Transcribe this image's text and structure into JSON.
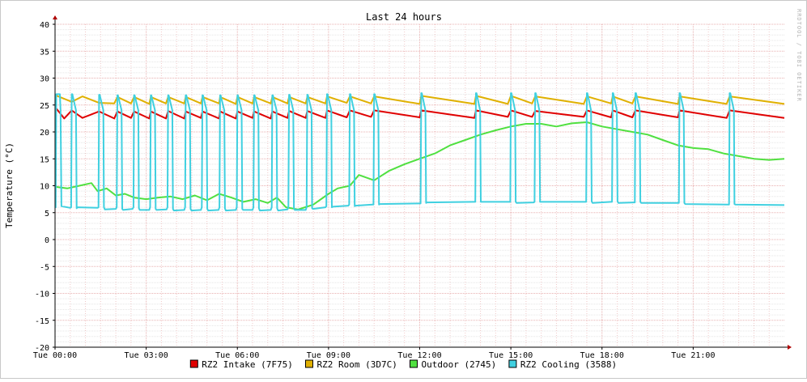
{
  "chart_data": {
    "type": "line",
    "title": "Last 24 hours",
    "ylabel": "Temperature (°C)",
    "watermark": "RRDTOOL / TOBI OETIKER",
    "ylim": [
      -20,
      40
    ],
    "y_ticks": [
      40,
      35,
      30,
      25,
      20,
      15,
      10,
      5,
      0,
      -5,
      -10,
      -15,
      -20
    ],
    "xlim_hours": [
      0,
      24
    ],
    "x_ticks": [
      {
        "h": 0,
        "label": "Tue 00:00"
      },
      {
        "h": 3,
        "label": "Tue 03:00"
      },
      {
        "h": 6,
        "label": "Tue 06:00"
      },
      {
        "h": 9,
        "label": "Tue 09:00"
      },
      {
        "h": 12,
        "label": "Tue 12:00"
      },
      {
        "h": 15,
        "label": "Tue 15:00"
      },
      {
        "h": 18,
        "label": "Tue 18:00"
      },
      {
        "h": 21,
        "label": "Tue 21:00"
      }
    ],
    "grid": true,
    "legend_position": "bottom",
    "cooling_cycle_start_hours": [
      0.02,
      0.55,
      1.45,
      2.05,
      2.6,
      3.15,
      3.72,
      4.3,
      4.85,
      5.43,
      6.0,
      6.55,
      7.15,
      7.7,
      8.3,
      8.95,
      9.7,
      10.5,
      12.05,
      13.85,
      15.0,
      15.8,
      17.5,
      18.35,
      19.1,
      20.55,
      22.2
    ],
    "series": [
      {
        "name": "RZ2 Intake (7F75)",
        "color": "#e00000",
        "x": [
          0.02,
          0.3,
          0.55,
          0.9,
          1.45,
          1.95,
          2.05,
          2.5,
          2.6,
          3.1,
          3.15,
          3.65,
          3.72,
          4.25,
          4.3,
          4.8,
          4.85,
          5.4,
          5.43,
          5.95,
          6.0,
          6.5,
          6.55,
          7.1,
          7.15,
          7.65,
          7.7,
          8.25,
          8.3,
          8.9,
          8.95,
          9.6,
          9.7,
          10.4,
          10.5,
          12.0,
          12.05,
          13.8,
          13.85,
          14.9,
          15.0,
          15.7,
          15.8,
          17.4,
          17.5,
          18.3,
          18.35,
          19.0,
          19.1,
          20.5,
          20.55,
          22.1,
          22.2,
          24.0
        ],
        "y": [
          24.5,
          22.5,
          24.0,
          22.6,
          23.8,
          22.5,
          23.8,
          22.6,
          23.8,
          22.5,
          23.8,
          22.5,
          23.9,
          22.5,
          23.8,
          22.6,
          23.8,
          22.5,
          23.8,
          22.5,
          23.8,
          22.6,
          23.8,
          22.5,
          23.8,
          22.6,
          23.9,
          22.6,
          23.9,
          22.6,
          24.0,
          22.7,
          24.0,
          22.8,
          24.0,
          22.7,
          24.0,
          22.6,
          24.0,
          22.8,
          24.0,
          22.8,
          23.9,
          22.8,
          24.0,
          22.7,
          24.0,
          22.7,
          24.0,
          22.7,
          24.0,
          22.6,
          24.0,
          22.6
        ]
      },
      {
        "name": "RZ2 Room (3D7C)",
        "color": "#e0b000",
        "x": [
          0.02,
          0.55,
          0.9,
          1.45,
          1.95,
          2.05,
          2.5,
          2.6,
          3.1,
          3.15,
          3.65,
          3.72,
          4.25,
          4.3,
          4.8,
          4.85,
          5.4,
          5.43,
          5.95,
          6.0,
          6.5,
          6.55,
          7.1,
          7.15,
          7.65,
          7.7,
          8.25,
          8.3,
          8.9,
          8.95,
          9.6,
          9.7,
          10.4,
          10.5,
          12.0,
          12.05,
          13.8,
          13.85,
          14.9,
          15.0,
          15.7,
          15.8,
          17.4,
          17.5,
          18.3,
          18.35,
          19.0,
          19.1,
          20.5,
          20.55,
          22.1,
          22.2,
          24.0
        ],
        "y": [
          26.8,
          25.6,
          26.6,
          25.4,
          25.3,
          26.5,
          25.3,
          26.5,
          25.2,
          26.5,
          25.3,
          26.5,
          25.3,
          26.5,
          25.3,
          26.5,
          25.3,
          26.5,
          25.2,
          26.5,
          25.3,
          26.5,
          25.3,
          26.5,
          25.3,
          26.5,
          25.3,
          26.5,
          25.3,
          26.6,
          25.4,
          26.6,
          25.3,
          26.6,
          25.2,
          26.7,
          25.2,
          26.7,
          25.2,
          26.7,
          25.3,
          26.6,
          25.2,
          26.6,
          25.3,
          26.6,
          25.3,
          26.6,
          25.2,
          26.6,
          25.2,
          26.6,
          25.2
        ]
      },
      {
        "name": "Outdoor (2745)",
        "color": "#50e040",
        "x": [
          0.0,
          0.4,
          0.8,
          1.2,
          1.4,
          1.7,
          2.0,
          2.3,
          2.6,
          3.0,
          3.4,
          3.8,
          4.2,
          4.6,
          5.0,
          5.4,
          5.8,
          6.2,
          6.6,
          7.0,
          7.3,
          7.6,
          8.0,
          8.5,
          9.0,
          9.3,
          9.7,
          10.0,
          10.5,
          11.0,
          11.5,
          12.0,
          12.5,
          13.0,
          13.5,
          14.0,
          14.5,
          15.0,
          15.5,
          16.0,
          16.5,
          17.0,
          17.5,
          18.0,
          18.5,
          19.0,
          19.5,
          20.0,
          20.5,
          21.0,
          21.5,
          22.0,
          22.5,
          23.0,
          23.5,
          24.0
        ],
        "y": [
          9.8,
          9.5,
          10.0,
          10.5,
          9.0,
          9.5,
          8.2,
          8.5,
          7.8,
          7.5,
          7.8,
          8.0,
          7.5,
          8.2,
          7.3,
          8.5,
          7.8,
          7.0,
          7.5,
          6.8,
          7.8,
          6.0,
          5.6,
          6.5,
          8.5,
          9.5,
          10.0,
          12.0,
          11.0,
          12.8,
          14.0,
          15.0,
          16.0,
          17.5,
          18.5,
          19.5,
          20.3,
          21.0,
          21.5,
          21.5,
          21.0,
          21.6,
          21.8,
          21.0,
          20.5,
          20.0,
          19.5,
          18.5,
          17.5,
          17.0,
          16.8,
          16.0,
          15.5,
          15.0,
          14.8,
          15.0
        ]
      },
      {
        "name": "RZ2 Cooling (3588)",
        "color": "#40d0e0",
        "x": [
          0.0,
          0.02,
          0.04,
          0.16,
          0.18,
          0.21,
          0.5,
          0.53,
          0.55,
          0.57,
          0.69,
          0.71,
          0.74,
          1.4,
          1.43,
          1.45,
          1.47,
          1.59,
          1.61,
          1.64,
          2.0,
          2.03,
          2.05,
          2.07,
          2.19,
          2.21,
          2.24,
          2.55,
          2.58,
          2.6,
          2.62,
          2.74,
          2.76,
          2.79,
          3.1,
          3.13,
          3.15,
          3.17,
          3.29,
          3.31,
          3.34,
          3.67,
          3.7,
          3.72,
          3.74,
          3.86,
          3.88,
          3.91,
          4.25,
          4.28,
          4.3,
          4.32,
          4.44,
          4.46,
          4.49,
          4.8,
          4.83,
          4.85,
          4.87,
          4.99,
          5.01,
          5.04,
          5.38,
          5.41,
          5.43,
          5.45,
          5.57,
          5.59,
          5.62,
          5.95,
          5.98,
          6.0,
          6.02,
          6.14,
          6.16,
          6.19,
          6.5,
          6.53,
          6.55,
          6.57,
          6.69,
          6.71,
          6.74,
          7.1,
          7.13,
          7.15,
          7.17,
          7.29,
          7.31,
          7.34,
          7.65,
          7.68,
          7.7,
          7.72,
          7.84,
          7.86,
          7.89,
          8.25,
          8.28,
          8.3,
          8.32,
          8.44,
          8.46,
          8.49,
          8.9,
          8.93,
          8.95,
          8.97,
          9.09,
          9.11,
          9.14,
          9.65,
          9.68,
          9.7,
          9.72,
          9.84,
          9.86,
          9.89,
          10.45,
          10.48,
          10.5,
          10.52,
          10.64,
          10.66,
          10.69,
          12.0,
          12.03,
          12.05,
          12.07,
          12.19,
          12.21,
          12.24,
          13.8,
          13.83,
          13.85,
          13.87,
          13.99,
          14.01,
          14.04,
          14.95,
          14.98,
          15.0,
          15.02,
          15.14,
          15.16,
          15.19,
          15.75,
          15.78,
          15.8,
          15.82,
          15.94,
          15.96,
          15.99,
          17.45,
          17.48,
          17.5,
          17.52,
          17.64,
          17.66,
          17.69,
          18.3,
          18.33,
          18.35,
          18.37,
          18.49,
          18.51,
          18.54,
          19.05,
          19.08,
          19.1,
          19.12,
          19.24,
          19.26,
          19.29,
          20.5,
          20.53,
          20.55,
          20.57,
          20.69,
          20.71,
          20.74,
          22.15,
          22.18,
          22.2,
          22.22,
          22.34,
          22.36,
          22.39,
          24.0
        ],
        "y": [
          6.0,
          6.0,
          27.0,
          27.0,
          24.0,
          6.2,
          5.9,
          6.0,
          27.0,
          27.0,
          24.0,
          5.8,
          6.0,
          5.9,
          6.0,
          26.9,
          26.9,
          24.0,
          6.0,
          5.6,
          5.7,
          6.0,
          26.8,
          26.8,
          24.0,
          5.7,
          5.5,
          5.7,
          6.0,
          26.8,
          26.8,
          24.0,
          5.8,
          5.5,
          5.5,
          6.0,
          26.8,
          26.8,
          24.0,
          5.7,
          5.5,
          5.6,
          6.0,
          26.8,
          26.8,
          24.0,
          5.7,
          5.4,
          5.5,
          6.0,
          26.8,
          26.8,
          24.0,
          5.7,
          5.4,
          5.5,
          6.0,
          26.8,
          26.8,
          24.0,
          5.7,
          5.4,
          5.5,
          6.0,
          26.8,
          26.8,
          24.0,
          5.8,
          5.4,
          5.5,
          6.0,
          26.8,
          26.8,
          24.0,
          5.7,
          5.5,
          5.5,
          6.0,
          26.8,
          26.8,
          24.0,
          5.8,
          5.4,
          5.5,
          6.0,
          26.8,
          26.8,
          24.0,
          5.8,
          5.4,
          5.6,
          6.0,
          26.9,
          26.9,
          24.0,
          5.8,
          5.5,
          5.5,
          6.0,
          26.9,
          26.9,
          24.0,
          5.8,
          5.7,
          6.0,
          6.2,
          27.0,
          27.0,
          24.0,
          6.0,
          6.1,
          6.3,
          6.5,
          27.0,
          27.0,
          24.0,
          6.2,
          6.3,
          6.5,
          6.5,
          27.0,
          27.0,
          24.0,
          6.5,
          6.6,
          6.7,
          6.7,
          27.2,
          27.2,
          24.0,
          6.8,
          6.9,
          7.0,
          7.0,
          27.2,
          27.2,
          24.0,
          7.0,
          7.0,
          7.0,
          7.0,
          27.2,
          27.2,
          24.0,
          7.0,
          6.8,
          6.9,
          7.0,
          27.2,
          27.2,
          24.0,
          7.0,
          7.0,
          7.0,
          7.0,
          27.2,
          27.2,
          24.0,
          7.1,
          6.8,
          7.0,
          7.0,
          27.2,
          27.2,
          24.0,
          7.1,
          6.8,
          6.9,
          6.9,
          27.2,
          27.2,
          24.0,
          7.0,
          6.8,
          6.8,
          6.8,
          27.2,
          27.2,
          24.0,
          6.8,
          6.6,
          6.5,
          6.5,
          27.2,
          27.2,
          24.0,
          6.6,
          6.5,
          6.4
        ]
      }
    ]
  }
}
